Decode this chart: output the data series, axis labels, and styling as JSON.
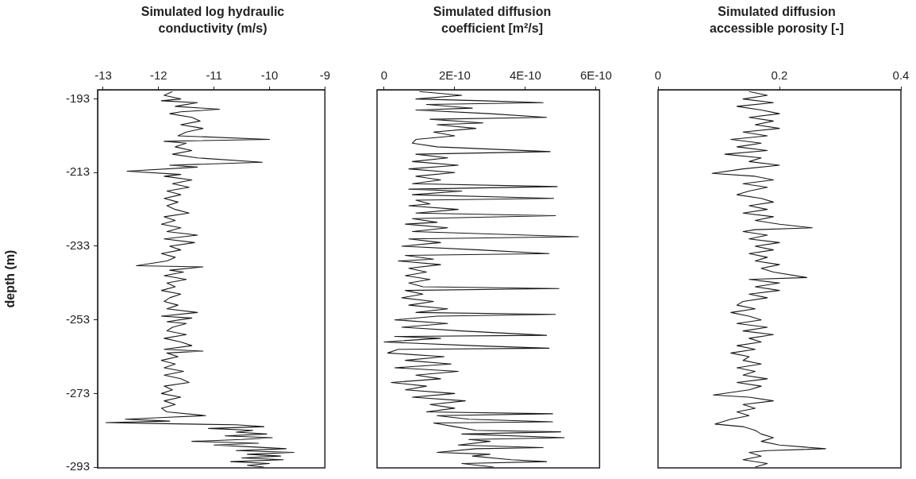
{
  "chart_data": [
    {
      "type": "line",
      "title": "Simulated log hydraulic conductivity (m/s)",
      "ylabel": "depth (m)",
      "xlim": [
        -13.1,
        -9
      ],
      "xticks": [
        -13,
        -12,
        -11,
        -10,
        -9
      ],
      "ylim": [
        -293.2,
        -190.5
      ],
      "yticks": [
        -193,
        -213,
        -233,
        -253,
        -273,
        -293
      ],
      "grid": false,
      "legend": false,
      "marker": "none",
      "line_style": "solid",
      "series": [
        {
          "color": "#1a1a1a",
          "x": [
            -11.75,
            -11.9,
            -11.6,
            -11.95,
            -11.3,
            -11.7,
            -10.9,
            -11.6,
            -11.8,
            -11.4,
            -11.25,
            -11.6,
            -11.2,
            -11.5,
            -11.65,
            -10.0,
            -11.9,
            -11.5,
            -11.7,
            -11.4,
            -11.75,
            -11.3,
            -10.13,
            -11.8,
            -11.3,
            -12.57,
            -11.6,
            -11.9,
            -11.4,
            -11.75,
            -11.45,
            -11.85,
            -11.6,
            -11.9,
            -11.65,
            -11.85,
            -11.7,
            -11.45,
            -11.9,
            -11.7,
            -11.95,
            -11.6,
            -11.85,
            -11.3,
            -11.9,
            -11.35,
            -11.8,
            -11.6,
            -11.95,
            -11.7,
            -11.85,
            -12.4,
            -11.2,
            -11.8,
            -11.55,
            -11.9,
            -11.5,
            -11.85,
            -11.7,
            -11.95,
            -11.6,
            -11.8,
            -11.9,
            -11.65,
            -11.85,
            -11.3,
            -11.95,
            -11.4,
            -11.85,
            -11.5,
            -11.75,
            -11.85,
            -11.5,
            -11.9,
            -11.6,
            -11.4,
            -11.9,
            -11.2,
            -11.85,
            -11.65,
            -11.95,
            -11.7,
            -11.9,
            -11.55,
            -11.9,
            -11.6,
            -11.45,
            -11.9,
            -11.75,
            -11.95,
            -11.6,
            -11.9,
            -11.7,
            -11.95,
            -11.85,
            -11.15,
            -11.9,
            -12.6,
            -11.8,
            -12.95,
            -11.85,
            -10.6,
            -10.1,
            -11.1,
            -10.3,
            -10.6,
            -10.05,
            -10.8,
            -9.95,
            -10.5,
            -11.4,
            -10.2,
            -11.0,
            -10.3,
            -9.7,
            -10.6,
            -9.56,
            -10.4,
            -9.8,
            -10.5,
            -9.75,
            -10.7,
            -10.0,
            -10.4,
            -10.1
          ],
          "values": [
            -191,
            -192,
            -193,
            -193.5,
            -194,
            -195,
            -195.8,
            -196.5,
            -197,
            -198,
            -199,
            -200,
            -201,
            -202,
            -203,
            -204,
            -204.5,
            -205,
            -206,
            -207,
            -208,
            -209,
            -210.2,
            -211,
            -211.5,
            -212.6,
            -213.5,
            -214,
            -215,
            -216,
            -217,
            -218,
            -219,
            -220,
            -221,
            -222,
            -223,
            -224,
            -225,
            -226,
            -227,
            -228,
            -229,
            -230,
            -231,
            -232,
            -233,
            -234,
            -235,
            -236,
            -237,
            -238.3,
            -238.6,
            -239.5,
            -240,
            -241,
            -242,
            -243,
            -244,
            -245,
            -246,
            -247,
            -248,
            -249,
            -250,
            -251,
            -252,
            -252.5,
            -253.5,
            -254,
            -255,
            -256,
            -257,
            -258,
            -259,
            -260,
            -261,
            -261.5,
            -262,
            -263,
            -264,
            -265,
            -266,
            -267,
            -268,
            -269,
            -270,
            -271,
            -272,
            -273,
            -274,
            -275,
            -276,
            -277,
            -278,
            -279,
            -279.5,
            -280,
            -280.5,
            -280.9,
            -281.2,
            -281.5,
            -282,
            -282.5,
            -283,
            -283.5,
            -284,
            -284.5,
            -285,
            -285.5,
            -286,
            -286.5,
            -287,
            -287.5,
            -288,
            -288.5,
            -289,
            -289.5,
            -290,
            -290.5,
            -291,
            -291.5,
            -292,
            -292.5,
            -293
          ]
        }
      ]
    },
    {
      "type": "line",
      "title": "Simulated diffusion coefficient [m²/s]",
      "xlim": [
        -2e-11,
        6.1e-10
      ],
      "xticks": [
        0,
        {
          "value": 2e-10,
          "label": "2E-10"
        },
        {
          "value": 4e-10,
          "label": "4E-10"
        },
        {
          "value": 6e-10,
          "label": "6E-10"
        }
      ],
      "ylim": [
        -293.2,
        -190.5
      ],
      "tick_labels": "x",
      "grid": false,
      "legend": false,
      "marker": "none",
      "line_style": "solid",
      "series": [
        {
          "color": "#1a1a1a",
          "x": [
            1e-10,
            2.2e-10,
            9e-11,
            2.8e-10,
            4.5e-10,
            1.2e-10,
            2.5e-10,
            9e-11,
            3e-10,
            4.6e-10,
            1.3e-10,
            2.8e-10,
            1.5e-10,
            2.6e-10,
            1.4e-10,
            2e-10,
            9e-11,
            8e-11,
            1.5e-10,
            4.7e-10,
            9e-11,
            1.8e-10,
            8e-11,
            2.1e-10,
            7e-11,
            2e-10,
            9e-11,
            1.6e-10,
            8e-11,
            4.9e-10,
            7e-11,
            2.2e-10,
            8e-11,
            4.8e-10,
            9e-11,
            1.3e-10,
            7e-11,
            2.1e-10,
            9e-11,
            4.85e-10,
            8e-11,
            1.5e-10,
            6e-11,
            1.8e-10,
            8e-11,
            5.5e-10,
            7e-11,
            1.6e-10,
            5e-11,
            2.7e-10,
            4.67e-10,
            6e-11,
            1.4e-10,
            4e-11,
            1.6e-10,
            7e-11,
            1.2e-10,
            6e-11,
            1.3e-10,
            7e-11,
            1.1e-10,
            4.95e-10,
            6e-11,
            1.1e-10,
            5e-11,
            1.4e-10,
            7e-11,
            1.8e-10,
            9e-11,
            4.85e-10,
            1.5e-10,
            3e-11,
            1.8e-10,
            5e-11,
            2.2e-10,
            4.6e-10,
            3e-11,
            1.6e-10,
            0,
            2.5e-10,
            4.67e-10,
            4e-11,
            1e-11,
            1.7e-10,
            6e-11,
            1.9e-10,
            3e-11,
            2.1e-10,
            9e-11,
            1.6e-10,
            2e-11,
            1.2e-10,
            6e-11,
            2e-10,
            8e-11,
            2.3e-10,
            1.3e-10,
            2e-10,
            1.2e-10,
            4.77e-10,
            1.5e-10,
            2.4e-10,
            4.77e-10,
            1.4e-10,
            2e-10,
            2.6e-10,
            5e-10,
            2.2e-10,
            5.1e-10,
            2.4e-10,
            3e-10,
            2.1e-10,
            4.5e-10,
            2.6e-10,
            1.5e-10,
            3e-10,
            2.5e-10,
            3.6e-10,
            4.6e-10,
            2.2e-10,
            3.1e-10
          ],
          "values": [
            -191,
            -192,
            -193,
            -193.5,
            -194,
            -194.5,
            -195.5,
            -196,
            -197,
            -198,
            -198.5,
            -199.5,
            -200,
            -201,
            -202,
            -203,
            -204,
            -205,
            -206,
            -207.3,
            -208,
            -209,
            -210,
            -211,
            -212,
            -213,
            -214,
            -215,
            -216,
            -216.8,
            -217.5,
            -218,
            -219,
            -220,
            -220.5,
            -221.5,
            -222,
            -223,
            -224,
            -224.7,
            -225.5,
            -226.5,
            -227,
            -228,
            -229,
            -230.4,
            -231,
            -232,
            -233,
            -234,
            -235,
            -235.5,
            -236.5,
            -237,
            -238,
            -239,
            -240,
            -241,
            -242,
            -243,
            -244,
            -244.5,
            -245,
            -246,
            -247,
            -248,
            -249,
            -250,
            -251,
            -251.5,
            -252,
            -253,
            -254,
            -255,
            -256,
            -257.2,
            -257.5,
            -258,
            -259,
            -260,
            -260.7,
            -261,
            -262,
            -263,
            -264,
            -265,
            -266,
            -267,
            -268,
            -269,
            -270,
            -271,
            -272,
            -273,
            -274,
            -275,
            -276,
            -277,
            -278,
            -278.5,
            -279,
            -280,
            -280.7,
            -281,
            -282,
            -283,
            -283.4,
            -284,
            -285,
            -285.5,
            -286,
            -287,
            -287.7,
            -288,
            -289,
            -289.5,
            -290,
            -291,
            -291.5,
            -292,
            -293
          ]
        }
      ]
    },
    {
      "type": "line",
      "title": "Simulated diffusion accessible porosity [-]",
      "xlim": [
        0,
        0.4
      ],
      "xticks": [
        0,
        0.2,
        0.4
      ],
      "ylim": [
        -293.2,
        -190.5
      ],
      "tick_labels": "x",
      "grid": false,
      "legend": false,
      "marker": "none",
      "line_style": "solid",
      "series": [
        {
          "color": "#1a1a1a",
          "x": [
            0.15,
            0.18,
            0.14,
            0.19,
            0.13,
            0.17,
            0.2,
            0.15,
            0.19,
            0.16,
            0.2,
            0.14,
            0.18,
            0.12,
            0.17,
            0.13,
            0.18,
            0.11,
            0.17,
            0.15,
            0.2,
            0.14,
            0.089,
            0.16,
            0.19,
            0.14,
            0.18,
            0.15,
            0.13,
            0.17,
            0.19,
            0.15,
            0.18,
            0.14,
            0.19,
            0.16,
            0.2,
            0.254,
            0.16,
            0.14,
            0.18,
            0.15,
            0.2,
            0.16,
            0.19,
            0.15,
            0.18,
            0.16,
            0.2,
            0.17,
            0.19,
            0.245,
            0.15,
            0.2,
            0.16,
            0.2,
            0.15,
            0.18,
            0.14,
            0.13,
            0.16,
            0.12,
            0.15,
            0.17,
            0.13,
            0.18,
            0.14,
            0.19,
            0.15,
            0.17,
            0.13,
            0.16,
            0.12,
            0.15,
            0.14,
            0.17,
            0.13,
            0.16,
            0.14,
            0.18,
            0.13,
            0.17,
            0.15,
            0.091,
            0.15,
            0.19,
            0.14,
            0.16,
            0.13,
            0.15,
            0.12,
            0.094,
            0.14,
            0.16,
            0.17,
            0.19,
            0.17,
            0.2,
            0.276,
            0.18,
            0.15,
            0.17,
            0.14,
            0.18,
            0.16
          ],
          "values": [
            -191,
            -192,
            -193,
            -194,
            -195,
            -196,
            -197,
            -198,
            -199,
            -200,
            -201,
            -202,
            -203,
            -204,
            -205,
            -206,
            -207,
            -208,
            -209,
            -210,
            -211,
            -212,
            -213.2,
            -214,
            -215,
            -216,
            -217,
            -218,
            -219,
            -220,
            -221,
            -222,
            -223,
            -224,
            -225,
            -226,
            -227,
            -228,
            -228.5,
            -229,
            -230,
            -231,
            -232,
            -233,
            -234,
            -235,
            -236,
            -237,
            -238,
            -239,
            -240,
            -241.5,
            -242,
            -243,
            -244,
            -245,
            -246,
            -247,
            -248,
            -249,
            -250,
            -251,
            -252,
            -253,
            -254,
            -255,
            -256,
            -257,
            -258,
            -259,
            -260,
            -261,
            -262,
            -263,
            -264,
            -265,
            -266,
            -267,
            -268,
            -269,
            -270,
            -271,
            -272,
            -273.4,
            -274,
            -275,
            -276,
            -277,
            -278,
            -279,
            -280,
            -281.3,
            -282,
            -283,
            -284,
            -285,
            -286,
            -287,
            -288,
            -288.5,
            -289,
            -290,
            -291,
            -292,
            -293
          ]
        }
      ]
    }
  ]
}
